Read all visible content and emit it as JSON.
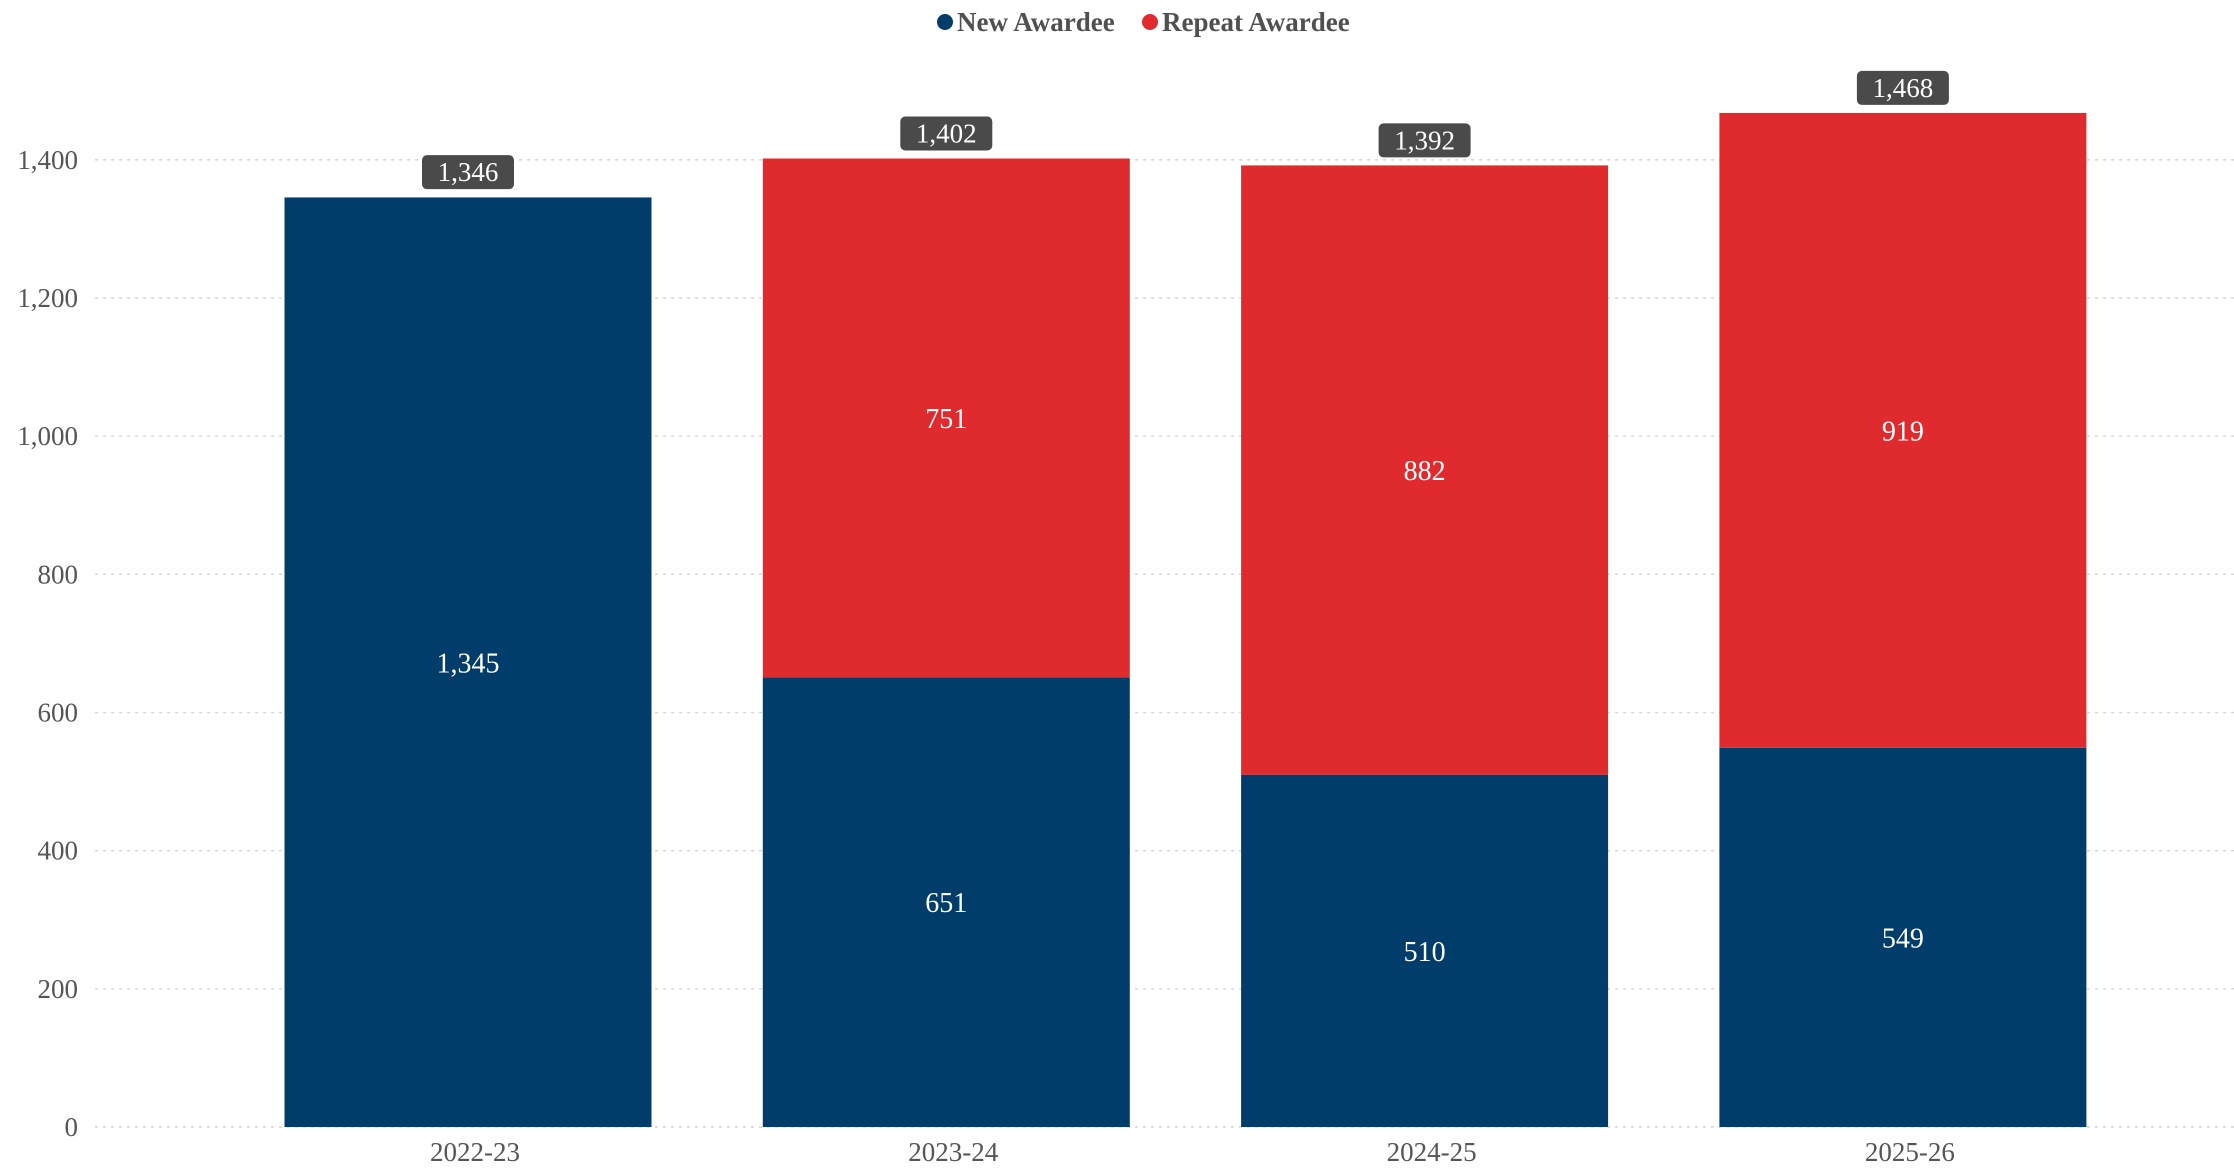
{
  "chart_data": {
    "type": "bar",
    "stacked": true,
    "categories": [
      "2022-23",
      "2023-24",
      "2024-25",
      "2025-26"
    ],
    "series": [
      {
        "name": "New Awardee",
        "values": [
          1345,
          651,
          510,
          549
        ],
        "color": "#003d6b"
      },
      {
        "name": "Repeat Awardee",
        "values": [
          1,
          751,
          882,
          919
        ],
        "color": "#e02b2e"
      }
    ],
    "totals": [
      1346,
      1402,
      1392,
      1468
    ],
    "value_labels": {
      "New Awardee": [
        "1,345",
        "651",
        "510",
        "549"
      ],
      "Repeat Awardee": [
        "",
        "751",
        "882",
        "919"
      ]
    },
    "total_labels": [
      "1,346",
      "1,402",
      "1,392",
      "1,468"
    ],
    "yticks": [
      0,
      200,
      400,
      600,
      800,
      1000,
      1200,
      1400
    ],
    "ytick_labels": [
      "0",
      "200",
      "400",
      "600",
      "800",
      "1,000",
      "1,200",
      "1,400"
    ],
    "ylim": [
      0,
      1468
    ],
    "grid": true,
    "legend_position": "top-center",
    "total_badge_color": "#4a4a4a",
    "title": "",
    "xlabel": "",
    "ylabel": ""
  }
}
